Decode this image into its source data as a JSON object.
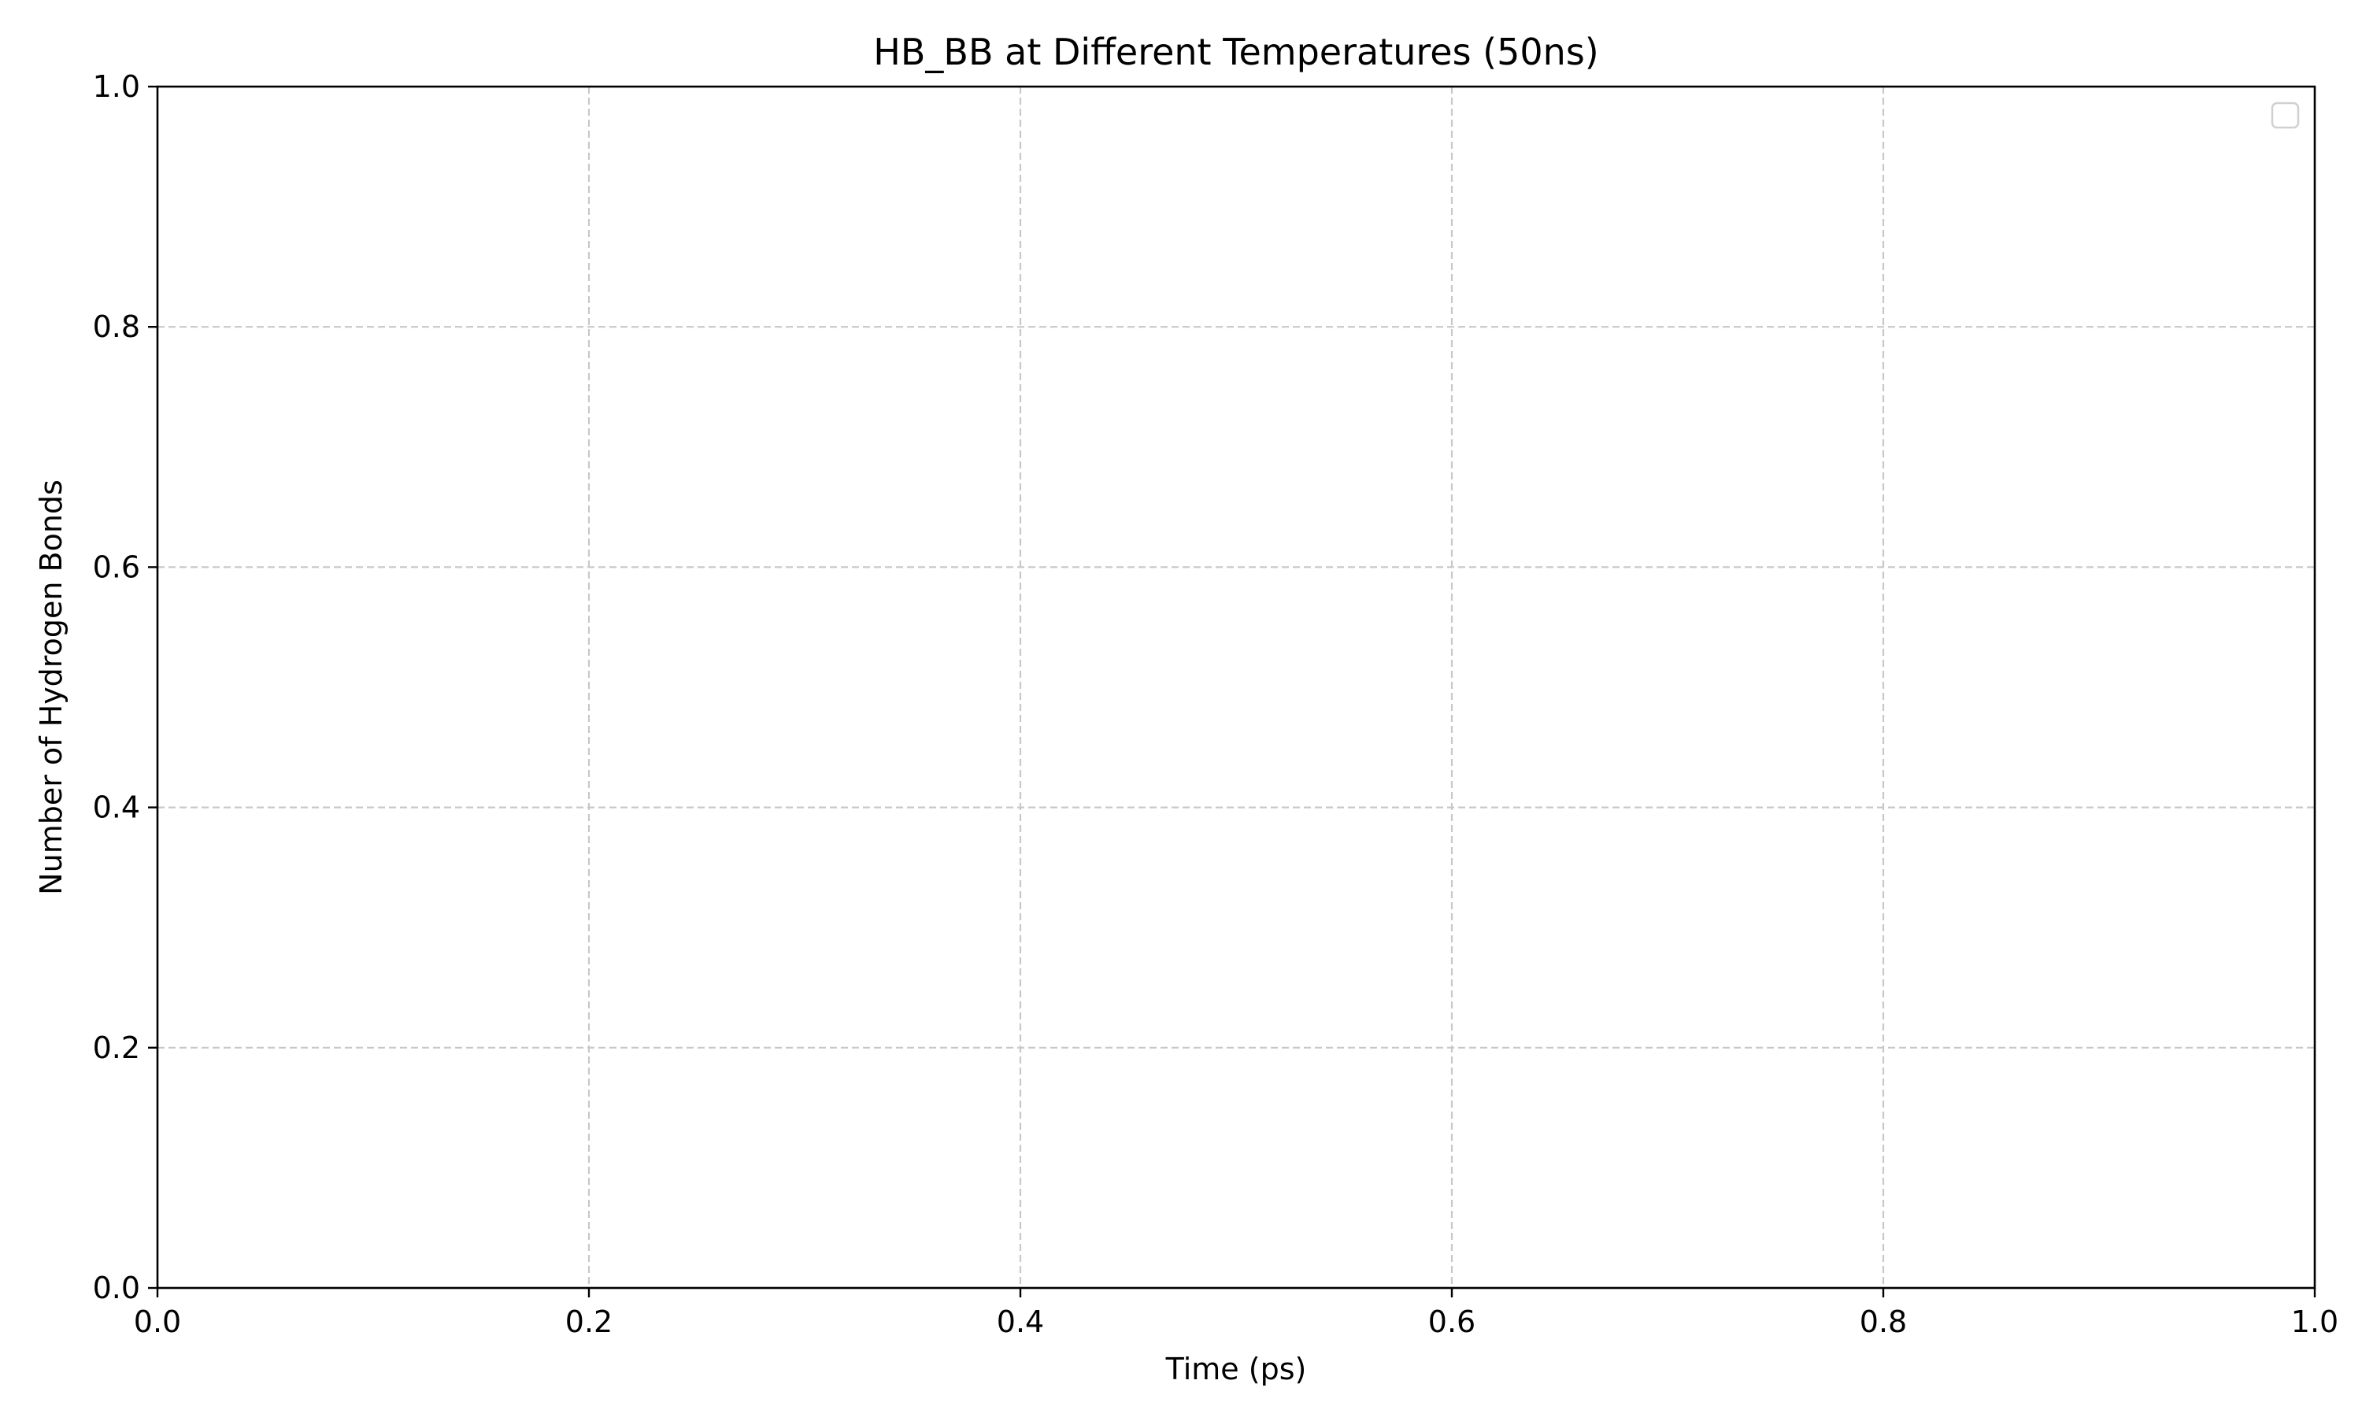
{
  "chart_data": {
    "type": "line",
    "title": "HB_BB at Different Temperatures (50ns)",
    "xlabel": "Time (ps)",
    "ylabel": "Number of Hydrogen Bonds",
    "xlim": [
      0.0,
      1.0
    ],
    "ylim": [
      0.0,
      1.0
    ],
    "x_ticks": [
      "0.0",
      "0.2",
      "0.4",
      "0.6",
      "0.8",
      "1.0"
    ],
    "y_ticks": [
      "0.0",
      "0.2",
      "0.4",
      "0.6",
      "0.8",
      "1.0"
    ],
    "series": [],
    "grid": true,
    "grid_style": "dashed",
    "legend": {
      "placement": "top-right",
      "entries": []
    },
    "colors": {
      "grid": "#c8c8c8",
      "axes": "#000000",
      "legend_border": "#d0d0d0"
    }
  }
}
